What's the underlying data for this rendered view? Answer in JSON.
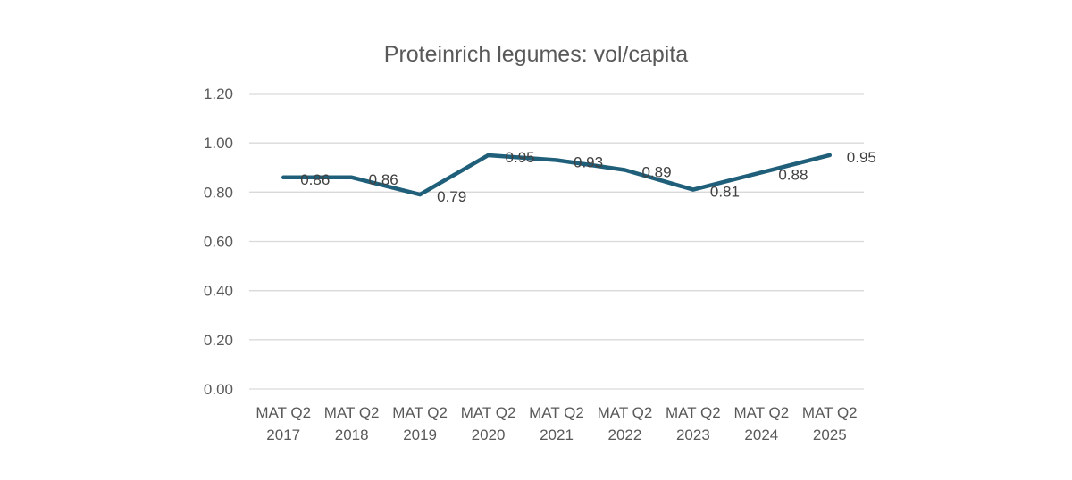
{
  "chart_data": {
    "type": "line",
    "title": "Proteinrich legumes: vol/capita",
    "xlabel": "",
    "ylabel": "",
    "categories": [
      [
        "MAT Q2",
        "2017"
      ],
      [
        "MAT Q2",
        "2018"
      ],
      [
        "MAT Q2",
        "2019"
      ],
      [
        "MAT Q2",
        "2020"
      ],
      [
        "MAT Q2",
        "2021"
      ],
      [
        "MAT Q2",
        "2022"
      ],
      [
        "MAT Q2",
        "2023"
      ],
      [
        "MAT Q2",
        "2024"
      ],
      [
        "MAT Q2",
        "2025"
      ]
    ],
    "series": [
      {
        "name": "vol/capita",
        "values": [
          0.86,
          0.86,
          0.79,
          0.95,
          0.93,
          0.89,
          0.81,
          0.88,
          0.95
        ],
        "labels": [
          "0.86",
          "0.86",
          "0.79",
          "0.95",
          "0.93",
          "0.89",
          "0.81",
          "0.88",
          "0.95"
        ]
      }
    ],
    "ylim": [
      0,
      1.2
    ],
    "yticks": [
      "0.00",
      "0.20",
      "0.40",
      "0.60",
      "0.80",
      "1.00",
      "1.20"
    ],
    "grid": true,
    "legend": "none",
    "colors": {
      "line": "#1f5f7a",
      "grid": "#d9d9d9",
      "title": "#595959",
      "tick": "#595959",
      "label": "#404040"
    }
  }
}
